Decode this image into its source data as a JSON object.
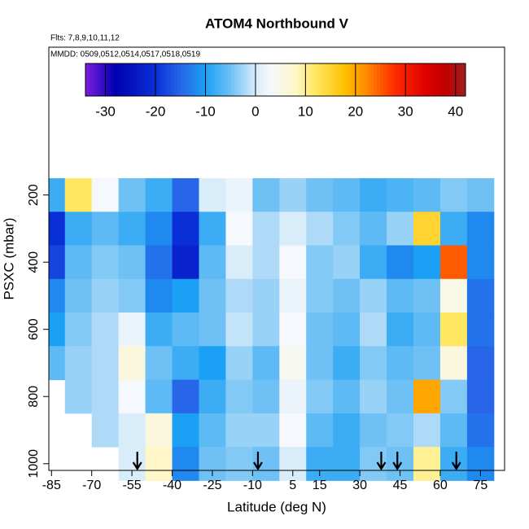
{
  "chart_data": {
    "type": "heatmap",
    "title": "ATOM4 Northbound V",
    "subtitle": "Flts: 7,8,9,10,11,12",
    "annotation": "MMDD: 0509,0512,0514,0517,0518,0519",
    "xlabel": "Latitude (deg N)",
    "ylabel": "PSXC (mbar)",
    "x": [
      -85,
      -75,
      -65,
      -55,
      -45,
      -35,
      -25,
      -15,
      -5,
      5,
      15,
      25,
      35,
      45,
      55,
      65,
      75
    ],
    "y": [
      200,
      300,
      400,
      500,
      600,
      700,
      800,
      900,
      1000
    ],
    "z": [
      [
        -8,
        12,
        3,
        -5,
        -8,
        -15,
        0,
        2,
        -5,
        -3,
        -5,
        -6,
        -8,
        -7,
        -6,
        -4,
        -5
      ],
      [
        -20,
        -8,
        -6,
        -8,
        -12,
        -20,
        -8,
        3,
        -2,
        0,
        -2,
        -4,
        -6,
        -3,
        15,
        -8,
        -12
      ],
      [
        -18,
        -6,
        -4,
        -5,
        -14,
        -22,
        -6,
        0,
        -2,
        3,
        -4,
        -3,
        -8,
        -12,
        -10,
        25,
        -12
      ],
      [
        -12,
        -5,
        -3,
        -4,
        -12,
        -10,
        -5,
        -2,
        -3,
        2,
        -4,
        -5,
        -3,
        -6,
        -5,
        5,
        -14
      ],
      [
        -10,
        -4,
        -2,
        2,
        -8,
        -6,
        -5,
        -1,
        -3,
        3,
        -5,
        -6,
        -2,
        -8,
        -6,
        12,
        -14
      ],
      [
        -6,
        -3,
        -2,
        6,
        -5,
        -8,
        -10,
        -3,
        -6,
        4,
        -5,
        -8,
        -4,
        -6,
        -5,
        6,
        -15
      ],
      [
        null,
        -3,
        -2,
        3,
        -6,
        -15,
        -8,
        -4,
        -5,
        2,
        -4,
        -6,
        -3,
        -5,
        20,
        -4,
        -15
      ],
      [
        null,
        null,
        -2,
        0,
        6,
        -10,
        -6,
        -3,
        -3,
        3,
        -6,
        -8,
        -5,
        -4,
        -2,
        -6,
        -14
      ],
      [
        null,
        null,
        null,
        0,
        8,
        -12,
        -5,
        -4,
        -5,
        0,
        -8,
        -8,
        -4,
        -5,
        10,
        -8,
        -12
      ]
    ],
    "arrows": [
      -53,
      -8,
      38,
      44,
      66
    ],
    "xlim": [
      -86,
      84
    ],
    "xticks": [
      -85,
      -70,
      -55,
      -40,
      -25,
      -10,
      5,
      15,
      30,
      45,
      60,
      75
    ],
    "ylim": [
      1020,
      -240
    ],
    "yticks": [
      200,
      400,
      600,
      800,
      1000
    ],
    "colorbar_lim": [
      -34,
      42
    ],
    "colorbar_ticks": [
      -30,
      -20,
      -10,
      0,
      10,
      20,
      30,
      40
    ],
    "colorscale": [
      [
        -34,
        "#7d1fe0"
      ],
      [
        -28,
        "#0000b0"
      ],
      [
        -20,
        "#0a2fd6"
      ],
      [
        -15,
        "#2766e8"
      ],
      [
        -10,
        "#1aa0f5"
      ],
      [
        -5,
        "#6ec0f5"
      ],
      [
        0,
        "#d8ecfa"
      ],
      [
        3,
        "#f5f8fc"
      ],
      [
        8,
        "#fff7c8"
      ],
      [
        12,
        "#ffe860"
      ],
      [
        18,
        "#ffc000"
      ],
      [
        22,
        "#ff8c00"
      ],
      [
        28,
        "#ff2a00"
      ],
      [
        34,
        "#e00000"
      ],
      [
        38,
        "#c00000"
      ],
      [
        42,
        "#a02020"
      ]
    ]
  }
}
